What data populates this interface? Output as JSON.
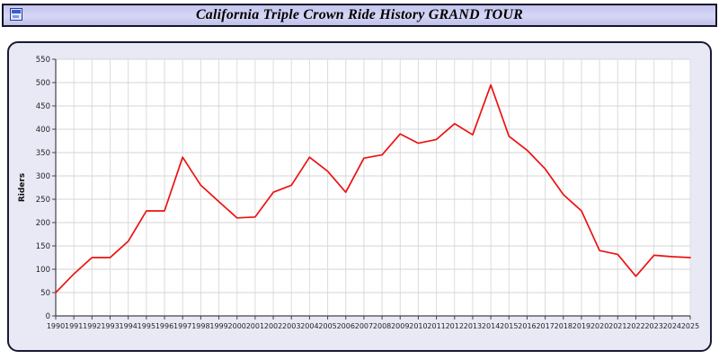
{
  "header": {
    "title": "California Triple Crown Ride History GRAND TOUR"
  },
  "chart_data": {
    "type": "line",
    "title": "California Triple Crown Ride History GRAND TOUR",
    "xlabel": "",
    "ylabel": "Riders",
    "ylim": [
      0,
      550
    ],
    "ytick_step": 50,
    "grid": true,
    "legend_position": "none",
    "line_color": "#ee1111",
    "x": [
      1990,
      1991,
      1992,
      1993,
      1994,
      1995,
      1996,
      1997,
      1998,
      1999,
      2000,
      2001,
      2002,
      2003,
      2004,
      2005,
      2006,
      2007,
      2008,
      2009,
      2010,
      2011,
      2012,
      2013,
      2014,
      2015,
      2016,
      2017,
      2018,
      2019,
      2020,
      2021,
      2022,
      2023,
      2024,
      2025
    ],
    "series": [
      {
        "name": "Riders",
        "values": [
          50,
          90,
          125,
          125,
          160,
          225,
          225,
          340,
          280,
          245,
          210,
          212,
          265,
          280,
          340,
          310,
          265,
          338,
          345,
          390,
          370,
          378,
          412,
          388,
          495,
          385,
          355,
          315,
          260,
          225,
          140,
          132,
          85,
          130,
          127,
          125
        ]
      }
    ]
  }
}
